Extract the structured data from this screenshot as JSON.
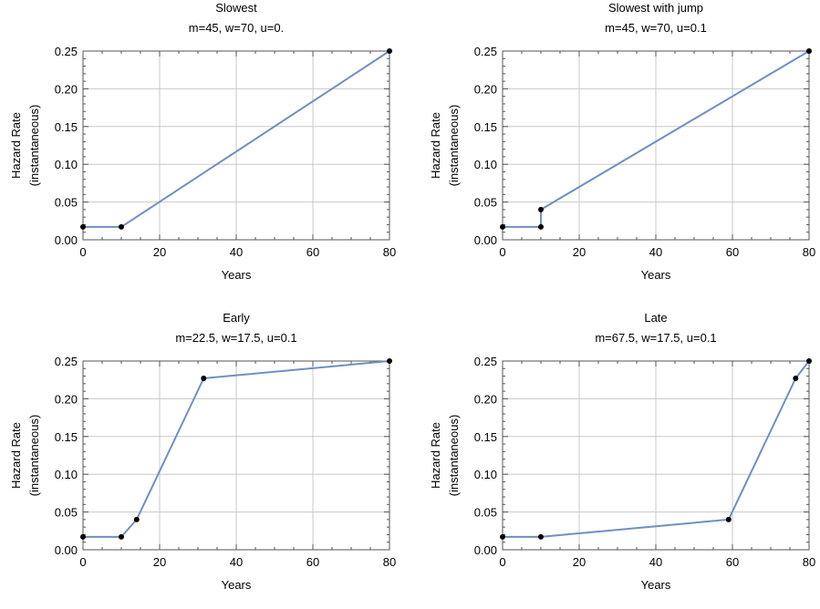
{
  "chart_data": [
    {
      "type": "line",
      "title": "Slowest",
      "subtitle": "m=45, w=70, u=0.",
      "xlabel": "Years",
      "ylabel_line1": "Hazard Rate",
      "ylabel_line2": "(instantaneous)",
      "xlim": [
        0,
        80
      ],
      "ylim": [
        0,
        0.25
      ],
      "xticks": [
        "0",
        "20",
        "40",
        "60",
        "80"
      ],
      "yticks": [
        "0.00",
        "0.05",
        "0.10",
        "0.15",
        "0.20",
        "0.25"
      ],
      "grid": true,
      "line_color": "#6f8fc2",
      "series": [
        {
          "x": [
            0,
            10,
            80
          ],
          "y": [
            0.017,
            0.017,
            0.25
          ]
        }
      ],
      "markers": [
        {
          "x": 0,
          "y": 0.017
        },
        {
          "x": 10,
          "y": 0.017
        },
        {
          "x": 80,
          "y": 0.25
        }
      ]
    },
    {
      "type": "line",
      "title": "Slowest with jump",
      "subtitle": "m=45, w=70, u=0.1",
      "xlabel": "Years",
      "ylabel_line1": "Hazard Rate",
      "ylabel_line2": "(instantaneous)",
      "xlim": [
        0,
        80
      ],
      "ylim": [
        0,
        0.25
      ],
      "xticks": [
        "0",
        "20",
        "40",
        "60",
        "80"
      ],
      "yticks": [
        "0.00",
        "0.05",
        "0.10",
        "0.15",
        "0.20",
        "0.25"
      ],
      "grid": true,
      "line_color": "#6f8fc2",
      "series": [
        {
          "x": [
            0,
            10,
            10,
            80
          ],
          "y": [
            0.017,
            0.017,
            0.04,
            0.25
          ]
        }
      ],
      "markers": [
        {
          "x": 0,
          "y": 0.017
        },
        {
          "x": 10,
          "y": 0.017
        },
        {
          "x": 10,
          "y": 0.04
        },
        {
          "x": 80,
          "y": 0.25
        }
      ]
    },
    {
      "type": "line",
      "title": "Early",
      "subtitle": "m=22.5, w=17.5, u=0.1",
      "xlabel": "Years",
      "ylabel_line1": "Hazard Rate",
      "ylabel_line2": "(instantaneous)",
      "xlim": [
        0,
        80
      ],
      "ylim": [
        0,
        0.25
      ],
      "xticks": [
        "0",
        "20",
        "40",
        "60",
        "80"
      ],
      "yticks": [
        "0.00",
        "0.05",
        "0.10",
        "0.15",
        "0.20",
        "0.25"
      ],
      "grid": true,
      "line_color": "#6f8fc2",
      "series": [
        {
          "x": [
            0,
            10,
            14,
            31.5,
            80
          ],
          "y": [
            0.017,
            0.017,
            0.04,
            0.227,
            0.25
          ]
        }
      ],
      "markers": [
        {
          "x": 0,
          "y": 0.017
        },
        {
          "x": 10,
          "y": 0.017
        },
        {
          "x": 14,
          "y": 0.04
        },
        {
          "x": 31.5,
          "y": 0.227
        },
        {
          "x": 80,
          "y": 0.25
        }
      ]
    },
    {
      "type": "line",
      "title": "Late",
      "subtitle": "m=67.5, w=17.5, u=0.1",
      "xlabel": "Years",
      "ylabel_line1": "Hazard Rate",
      "ylabel_line2": "(instantaneous)",
      "xlim": [
        0,
        80
      ],
      "ylim": [
        0,
        0.25
      ],
      "xticks": [
        "0",
        "20",
        "40",
        "60",
        "80"
      ],
      "yticks": [
        "0.00",
        "0.05",
        "0.10",
        "0.15",
        "0.20",
        "0.25"
      ],
      "grid": true,
      "line_color": "#6f8fc2",
      "series": [
        {
          "x": [
            0,
            10,
            59,
            76.5,
            80
          ],
          "y": [
            0.017,
            0.017,
            0.04,
            0.227,
            0.25
          ]
        }
      ],
      "markers": [
        {
          "x": 0,
          "y": 0.017
        },
        {
          "x": 10,
          "y": 0.017
        },
        {
          "x": 59,
          "y": 0.04
        },
        {
          "x": 76.5,
          "y": 0.227
        },
        {
          "x": 80,
          "y": 0.25
        }
      ]
    }
  ]
}
